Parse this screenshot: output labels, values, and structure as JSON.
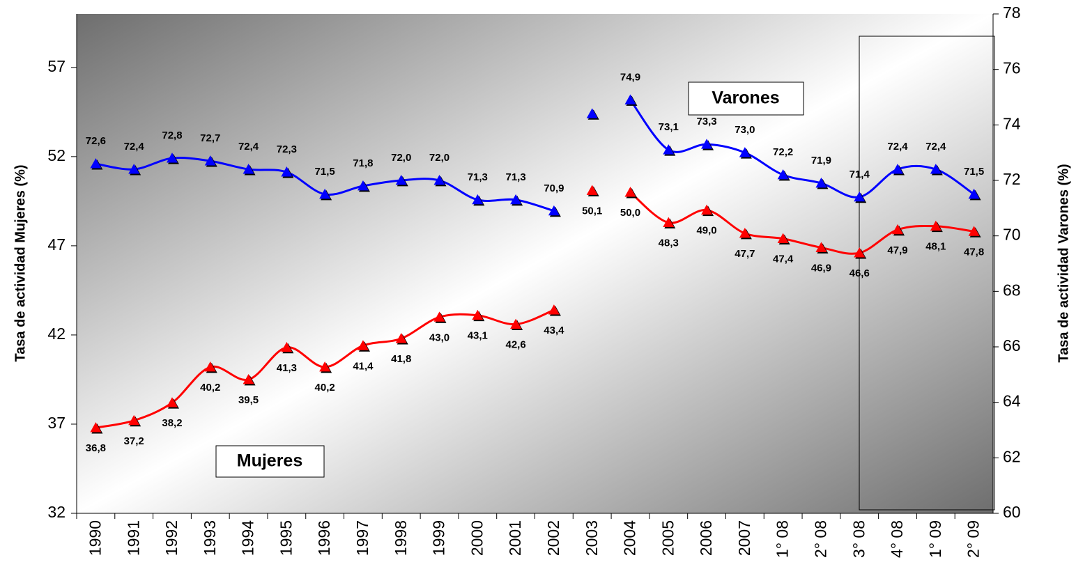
{
  "chart_data": {
    "type": "line",
    "categories": [
      "1990",
      "1991",
      "1992",
      "1993",
      "1994",
      "1995",
      "1996",
      "1997",
      "1998",
      "1999",
      "2000",
      "2001",
      "2002",
      "2003",
      "2004",
      "2005",
      "2006",
      "2007",
      "1° 08",
      "2° 08",
      "3° 08",
      "4° 08",
      "1° 09",
      "2° 09"
    ],
    "y_label": "Tasa de actividad Mujeres (%)",
    "y2_label": "Tasa de actividad Varones (%)",
    "ylim": [
      32,
      60
    ],
    "yticks": [
      32,
      37,
      42,
      47,
      52,
      57
    ],
    "y2lim": [
      60,
      78
    ],
    "y2ticks": [
      60,
      62,
      64,
      66,
      68,
      70,
      72,
      74,
      76,
      78
    ],
    "breaks_after": [
      12,
      13
    ],
    "series": [
      {
        "name": "Mujeres",
        "color": "#ff0000",
        "axis": "y",
        "values": [
          36.8,
          37.2,
          38.2,
          40.2,
          39.5,
          41.3,
          40.2,
          41.4,
          41.8,
          43.0,
          43.1,
          42.6,
          43.4,
          50.1,
          50.0,
          48.3,
          49.0,
          47.7,
          47.4,
          46.9,
          46.6,
          47.9,
          48.1,
          47.8
        ],
        "value_labels": [
          "36,8",
          "37,2",
          "38,2",
          "40,2",
          "39,5",
          "41,3",
          "40,2",
          "41,4",
          "41,8",
          "43,0",
          "43,1",
          "42,6",
          "43,4",
          "50,1",
          "50,0",
          "48,3",
          "49,0",
          "47,7",
          "47,4",
          "46,9",
          "46,6",
          "47,9",
          "48,1",
          "47,8"
        ]
      },
      {
        "name": "Varones",
        "color": "#0000ff",
        "axis": "y2",
        "values": [
          72.6,
          72.4,
          72.8,
          72.7,
          72.4,
          72.3,
          71.5,
          71.8,
          72.0,
          72.0,
          71.3,
          71.3,
          70.9,
          74.4,
          74.9,
          73.1,
          73.3,
          73.0,
          72.2,
          71.9,
          71.4,
          72.4,
          72.4,
          71.5
        ],
        "value_labels": [
          "72,6",
          "72,4",
          "72,8",
          "72,7",
          "72,4",
          "72,3",
          "71,5",
          "71,8",
          "72,0",
          "72,0",
          "71,3",
          "71,3",
          "70,9",
          null,
          "74,9",
          "73,1",
          "73,3",
          "73,0",
          "72,2",
          "71,9",
          "71,4",
          "72,4",
          "72,4",
          "71,5"
        ]
      }
    ]
  }
}
